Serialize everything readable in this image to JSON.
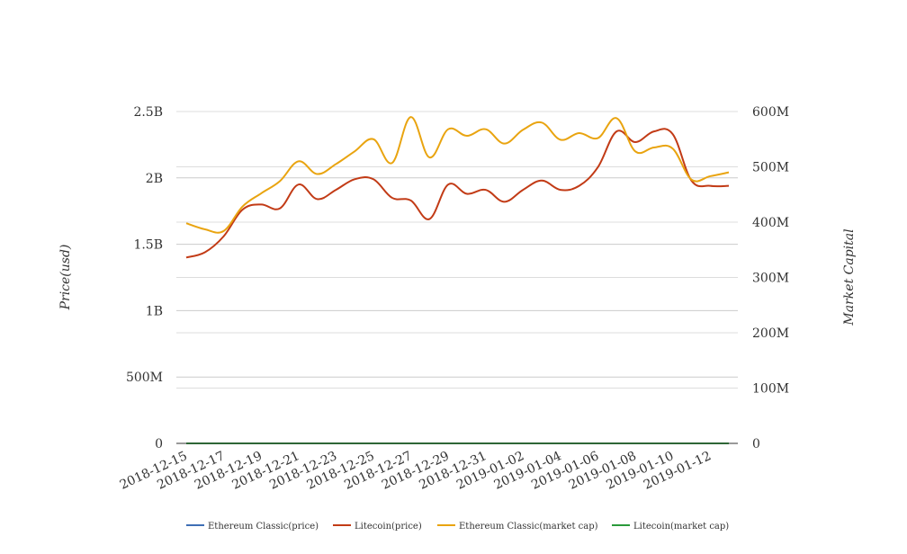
{
  "chart_data": {
    "type": "line",
    "title": "",
    "xlabel": "",
    "ylabel_left": "Price(usd)",
    "ylabel_right": "Market Capital",
    "ylim_left": [
      0,
      2500000000
    ],
    "ylim_right": [
      0,
      600000000
    ],
    "yticks_left": [
      "0",
      "500M",
      "1B",
      "1.5B",
      "2B",
      "2.5B"
    ],
    "yticks_right": [
      "0",
      "100M",
      "200M",
      "300M",
      "400M",
      "500M",
      "600M"
    ],
    "x": [
      "2018-12-15",
      "2018-12-16",
      "2018-12-17",
      "2018-12-18",
      "2018-12-19",
      "2018-12-20",
      "2018-12-21",
      "2018-12-22",
      "2018-12-23",
      "2018-12-24",
      "2018-12-25",
      "2018-12-26",
      "2018-12-27",
      "2018-12-28",
      "2018-12-29",
      "2018-12-30",
      "2018-12-31",
      "2019-01-01",
      "2019-01-02",
      "2019-01-03",
      "2019-01-04",
      "2019-01-05",
      "2019-01-06",
      "2019-01-07",
      "2019-01-08",
      "2019-01-09",
      "2019-01-10",
      "2019-01-11",
      "2019-01-12",
      "2019-01-13"
    ],
    "xtick_labels": [
      "2018-12-15",
      "2018-12-17",
      "2018-12-19",
      "2018-12-21",
      "2018-12-23",
      "2018-12-25",
      "2018-12-27",
      "2018-12-29",
      "2018-12-31",
      "2019-01-02",
      "2019-01-04",
      "2019-01-06",
      "2019-01-08",
      "2019-01-10",
      "2019-01-12"
    ],
    "grid": true,
    "legend_position": "bottom",
    "series": [
      {
        "name": "Ethereum Classic(price)",
        "axis": "left",
        "color": "#3f6fb5",
        "values": [
          5,
          5,
          5,
          5,
          5,
          5,
          5,
          5,
          5,
          5,
          5,
          5,
          5,
          5,
          5,
          5,
          5,
          5,
          5,
          5,
          5,
          5,
          5,
          5,
          5,
          5,
          5,
          5,
          5,
          5
        ]
      },
      {
        "name": "Litecoin(price)",
        "axis": "left",
        "color": "#c23b16",
        "values": [
          1400000000,
          1440000000,
          1560000000,
          1760000000,
          1800000000,
          1770000000,
          1950000000,
          1840000000,
          1910000000,
          1990000000,
          1990000000,
          1850000000,
          1830000000,
          1690000000,
          1950000000,
          1880000000,
          1910000000,
          1820000000,
          1910000000,
          1980000000,
          1910000000,
          1940000000,
          2080000000,
          2350000000,
          2270000000,
          2350000000,
          2330000000,
          1980000000,
          1940000000,
          1940000000
        ]
      },
      {
        "name": "Ethereum Classic(market cap)",
        "axis": "right",
        "color": "#e9a410",
        "values": [
          398000000,
          387000000,
          384000000,
          428000000,
          452000000,
          474000000,
          510000000,
          487000000,
          505000000,
          528000000,
          550000000,
          507000000,
          590000000,
          517000000,
          568000000,
          556000000,
          568000000,
          542000000,
          567000000,
          580000000,
          549000000,
          561000000,
          552000000,
          588000000,
          528000000,
          535000000,
          533000000,
          477000000,
          483000000,
          490000000
        ]
      },
      {
        "name": "Litecoin(market cap)",
        "axis": "right",
        "color": "#2a9a3a",
        "values": [
          5,
          5,
          5,
          5,
          5,
          5,
          5,
          5,
          5,
          5,
          5,
          5,
          5,
          5,
          5,
          5,
          5,
          5,
          5,
          5,
          5,
          5,
          5,
          5,
          5,
          5,
          5,
          5,
          5,
          5
        ]
      }
    ]
  }
}
